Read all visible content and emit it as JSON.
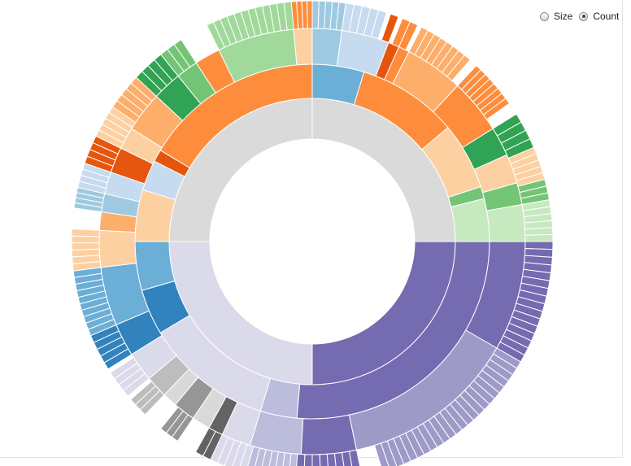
{
  "mode": {
    "options": [
      {
        "label": "Size",
        "checked": false
      },
      {
        "label": "Count",
        "checked": true
      }
    ]
  },
  "chart_data": {
    "type": "sunburst",
    "value_mode": "Count",
    "colors": {
      "root": "#dadada",
      "blue": [
        "#3182bd",
        "#6baed6",
        "#9ecae1",
        "#c6dbef"
      ],
      "orange": [
        "#e6550d",
        "#fd8d3c",
        "#fdae6b",
        "#fdd0a2"
      ],
      "green": [
        "#31a354",
        "#74c476",
        "#a1d99b",
        "#c7e9c0"
      ],
      "purple": [
        "#756bb1",
        "#9e9ac8",
        "#bcbddc",
        "#dadaeb"
      ],
      "gray": [
        "#636363",
        "#969696",
        "#bdbdbd",
        "#d9d9d9"
      ]
    },
    "rings": [
      [
        {
          "start": 0,
          "end": 90,
          "color": "#dadada"
        },
        {
          "start": 90,
          "end": 180,
          "color": "#756bb1"
        },
        {
          "start": 180,
          "end": 270,
          "color": "#dadaeb"
        },
        {
          "start": 270,
          "end": 360,
          "color": "#dadada"
        }
      ],
      [
        {
          "start": 0,
          "end": 17,
          "color": "#6baed6"
        },
        {
          "start": 17,
          "end": 50,
          "color": "#fd8d3c"
        },
        {
          "start": 50,
          "end": 72,
          "color": "#fdd0a2"
        },
        {
          "start": 72,
          "end": 76,
          "color": "#74c476"
        },
        {
          "start": 76,
          "end": 90,
          "color": "#c7e9c0"
        },
        {
          "start": 90,
          "end": 185,
          "color": "#756bb1"
        },
        {
          "start": 185,
          "end": 197,
          "color": "#bcbddc"
        },
        {
          "start": 197,
          "end": 239,
          "color": "#dadaeb"
        },
        {
          "start": 239,
          "end": 254,
          "color": "#3182bd"
        },
        {
          "start": 254,
          "end": 270,
          "color": "#6baed6"
        },
        {
          "start": 270,
          "end": 287,
          "color": "#fdd0a2"
        },
        {
          "start": 287,
          "end": 297,
          "color": "#c6dbef"
        },
        {
          "start": 297,
          "end": 301,
          "color": "#e6550d"
        },
        {
          "start": 301,
          "end": 360,
          "color": "#fd8d3c"
        }
      ],
      [
        {
          "start": 0,
          "end": 8,
          "color": "#9ecae1"
        },
        {
          "start": 8,
          "end": 21,
          "color": "#c6dbef"
        },
        {
          "start": 21,
          "end": 24,
          "color": "#e6550d"
        },
        {
          "start": 24,
          "end": 27,
          "color": "#fd8d3c"
        },
        {
          "start": 27,
          "end": 43,
          "color": "#fdae6b"
        },
        {
          "start": 43,
          "end": 58,
          "color": "#fd8d3c"
        },
        {
          "start": 58,
          "end": 66,
          "color": "#31a354"
        },
        {
          "start": 66,
          "end": 74,
          "color": "#fdd0a2"
        },
        {
          "start": 74,
          "end": 80,
          "color": "#74c476"
        },
        {
          "start": 80,
          "end": 90,
          "color": "#c7e9c0"
        },
        {
          "start": 90,
          "end": 120,
          "color": "#756bb1"
        },
        {
          "start": 120,
          "end": 168,
          "color": "#9e9ac8"
        },
        {
          "start": 168,
          "end": 183,
          "color": "#756bb1"
        },
        {
          "start": 183,
          "end": 197,
          "color": "#bcbddc"
        },
        {
          "start": 197,
          "end": 205,
          "color": "#dadaeb"
        },
        {
          "start": 205,
          "end": 209,
          "color": "#636363"
        },
        {
          "start": 209,
          "end": 214,
          "color": "#d9d9d9"
        },
        {
          "start": 214,
          "end": 220,
          "color": "#969696"
        },
        {
          "start": 220,
          "end": 224,
          "color": "#d9d9d9"
        },
        {
          "start": 224,
          "end": 230,
          "color": "#bdbdbd"
        },
        {
          "start": 230,
          "end": 238,
          "color": "#dadaeb"
        },
        {
          "start": 238,
          "end": 247,
          "color": "#3182bd"
        },
        {
          "start": 247,
          "end": 263,
          "color": "#6baed6"
        },
        {
          "start": 263,
          "end": 273,
          "color": "#fdd0a2"
        },
        {
          "start": 273,
          "end": 278,
          "color": "#fdae6b"
        },
        {
          "start": 278,
          "end": 283,
          "color": "#9ecae1"
        },
        {
          "start": 283,
          "end": 289,
          "color": "#c6dbef"
        },
        {
          "start": 289,
          "end": 296,
          "color": "#e6550d"
        },
        {
          "start": 296,
          "end": 302,
          "color": "#fdd0a2"
        },
        {
          "start": 302,
          "end": 313,
          "color": "#fdae6b"
        },
        {
          "start": 313,
          "end": 321,
          "color": "#31a354"
        },
        {
          "start": 321,
          "end": 327,
          "color": "#74c476"
        },
        {
          "start": 327,
          "end": 334,
          "color": "#fd8d3c"
        },
        {
          "start": 334,
          "end": 355,
          "color": "#a1d99b"
        },
        {
          "start": 355,
          "end": 360,
          "color": "#fdd0a2"
        }
      ],
      [
        {
          "start": 0,
          "end": 8,
          "color": "#9ecae1",
          "n": 5
        },
        {
          "start": 8,
          "end": 18,
          "color": "#c6dbef",
          "n": 5
        },
        {
          "start": 19,
          "end": 21,
          "color": "#e6550d",
          "n": 1
        },
        {
          "start": 22,
          "end": 26,
          "color": "#fd8d3c",
          "n": 2
        },
        {
          "start": 27,
          "end": 41,
          "color": "#fdae6b",
          "n": 8
        },
        {
          "start": 43,
          "end": 55,
          "color": "#fd8d3c",
          "n": 8
        },
        {
          "start": 58,
          "end": 67,
          "color": "#31a354",
          "n": 4
        },
        {
          "start": 67,
          "end": 75,
          "color": "#fdd0a2",
          "n": 5
        },
        {
          "start": 75,
          "end": 80,
          "color": "#74c476",
          "n": 3
        },
        {
          "start": 80,
          "end": 90,
          "color": "#c7e9c0",
          "n": 6
        },
        {
          "start": 90,
          "end": 120,
          "color": "#756bb1",
          "n": 16
        },
        {
          "start": 120,
          "end": 163,
          "color": "#9e9ac8",
          "n": 24
        },
        {
          "start": 168,
          "end": 184,
          "color": "#756bb1",
          "n": 8
        },
        {
          "start": 184,
          "end": 196,
          "color": "#bcbddc",
          "n": 7
        },
        {
          "start": 196,
          "end": 205,
          "color": "#dadaeb",
          "n": 5
        },
        {
          "start": 205,
          "end": 209,
          "color": "#636363",
          "n": 2
        },
        {
          "start": 214,
          "end": 219,
          "color": "#969696",
          "n": 3
        },
        {
          "start": 224,
          "end": 229,
          "color": "#bdbdbd",
          "n": 3
        },
        {
          "start": 230,
          "end": 237,
          "color": "#dadaeb",
          "n": 4
        },
        {
          "start": 238,
          "end": 247,
          "color": "#3182bd",
          "n": 5
        },
        {
          "start": 247,
          "end": 263,
          "color": "#6baed6",
          "n": 10
        },
        {
          "start": 263,
          "end": 273,
          "color": "#fdd0a2",
          "n": 6
        },
        {
          "start": 278,
          "end": 283,
          "color": "#9ecae1",
          "n": 4
        },
        {
          "start": 283,
          "end": 289,
          "color": "#c6dbef",
          "n": 4
        },
        {
          "start": 289,
          "end": 296,
          "color": "#e6550d",
          "n": 4
        },
        {
          "start": 296,
          "end": 304,
          "color": "#fdd0a2",
          "n": 5
        },
        {
          "start": 304,
          "end": 313,
          "color": "#fdae6b",
          "n": 5
        },
        {
          "start": 313,
          "end": 321,
          "color": "#31a354",
          "n": 4
        },
        {
          "start": 321,
          "end": 327,
          "color": "#74c476",
          "n": 3
        },
        {
          "start": 334,
          "end": 355,
          "color": "#a1d99b",
          "n": 12
        },
        {
          "start": 355,
          "end": 360,
          "color": "#fd8d3c",
          "n": 4
        }
      ]
    ]
  }
}
